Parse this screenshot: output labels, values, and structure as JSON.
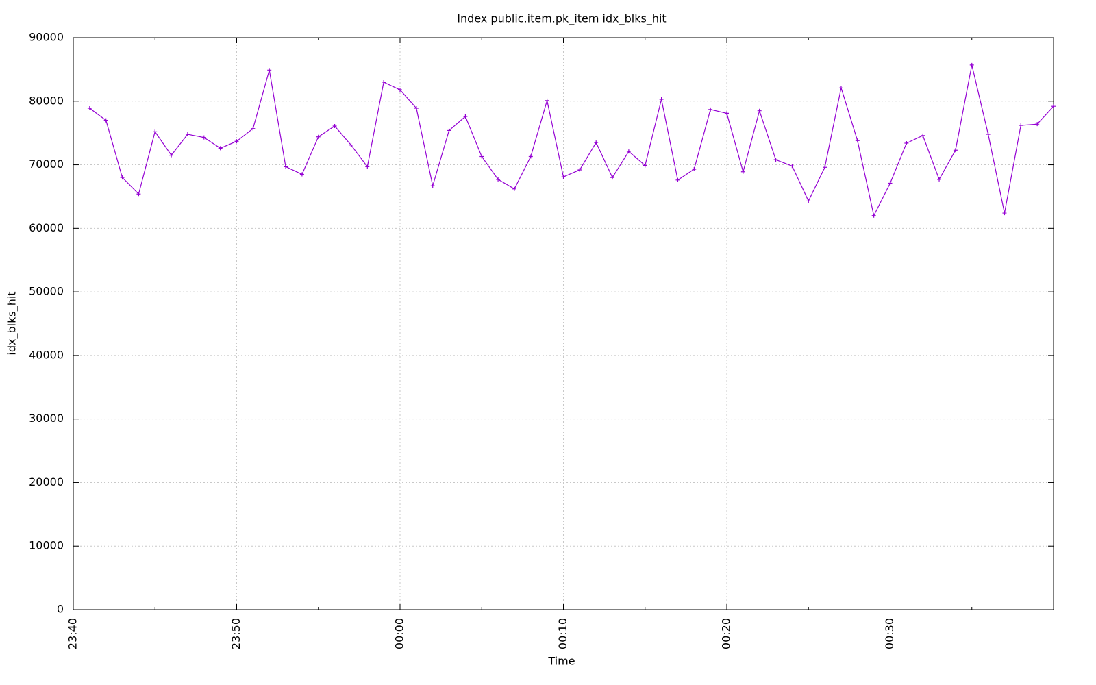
{
  "chart_data": {
    "type": "line",
    "title": "Index public.item.pk_item idx_blks_hit",
    "xlabel": "Time",
    "ylabel": "idx_blks_hit",
    "x": [
      "23:41",
      "23:42",
      "23:43",
      "23:44",
      "23:45",
      "23:46",
      "23:47",
      "23:48",
      "23:49",
      "23:50",
      "23:51",
      "23:52",
      "23:53",
      "23:54",
      "23:55",
      "23:56",
      "23:57",
      "23:58",
      "23:59",
      "00:00",
      "00:01",
      "00:02",
      "00:03",
      "00:04",
      "00:05",
      "00:06",
      "00:07",
      "00:08",
      "00:09",
      "00:10",
      "00:11",
      "00:12",
      "00:13",
      "00:14",
      "00:15",
      "00:16",
      "00:17",
      "00:18",
      "00:19",
      "00:20",
      "00:21",
      "00:22",
      "00:23",
      "00:24",
      "00:25",
      "00:26",
      "00:27",
      "00:28",
      "00:29",
      "00:30",
      "00:31",
      "00:32",
      "00:33",
      "00:34",
      "00:35",
      "00:36",
      "00:37",
      "00:38",
      "00:39",
      "00:40"
    ],
    "series": [
      {
        "name": "idx_blks_hit",
        "color": "#9400d3",
        "values": [
          78900,
          77000,
          68000,
          65400,
          75200,
          71500,
          74800,
          74300,
          72600,
          73700,
          75700,
          84900,
          69700,
          68500,
          74400,
          76100,
          73100,
          69700,
          83000,
          81800,
          78900,
          66700,
          75400,
          77600,
          71300,
          67700,
          66200,
          71300,
          80100,
          68100,
          69200,
          73500,
          68000,
          72100,
          69900,
          80300,
          67600,
          69300,
          78700,
          78100,
          68900,
          78500,
          70800,
          69800,
          64300,
          69600,
          82100,
          73800,
          62000,
          67100,
          73400,
          74600,
          67700,
          72300,
          85700,
          74800,
          62400,
          76200,
          76400,
          79200
        ]
      }
    ],
    "xlim": [
      "23:40",
      "00:40"
    ],
    "xticks": [
      "23:40",
      "23:50",
      "00:00",
      "00:10",
      "00:20",
      "00:30"
    ],
    "ylim": [
      0,
      90000
    ],
    "yticks": [
      0,
      10000,
      20000,
      30000,
      40000,
      50000,
      60000,
      70000,
      80000,
      90000
    ],
    "grid": true
  }
}
